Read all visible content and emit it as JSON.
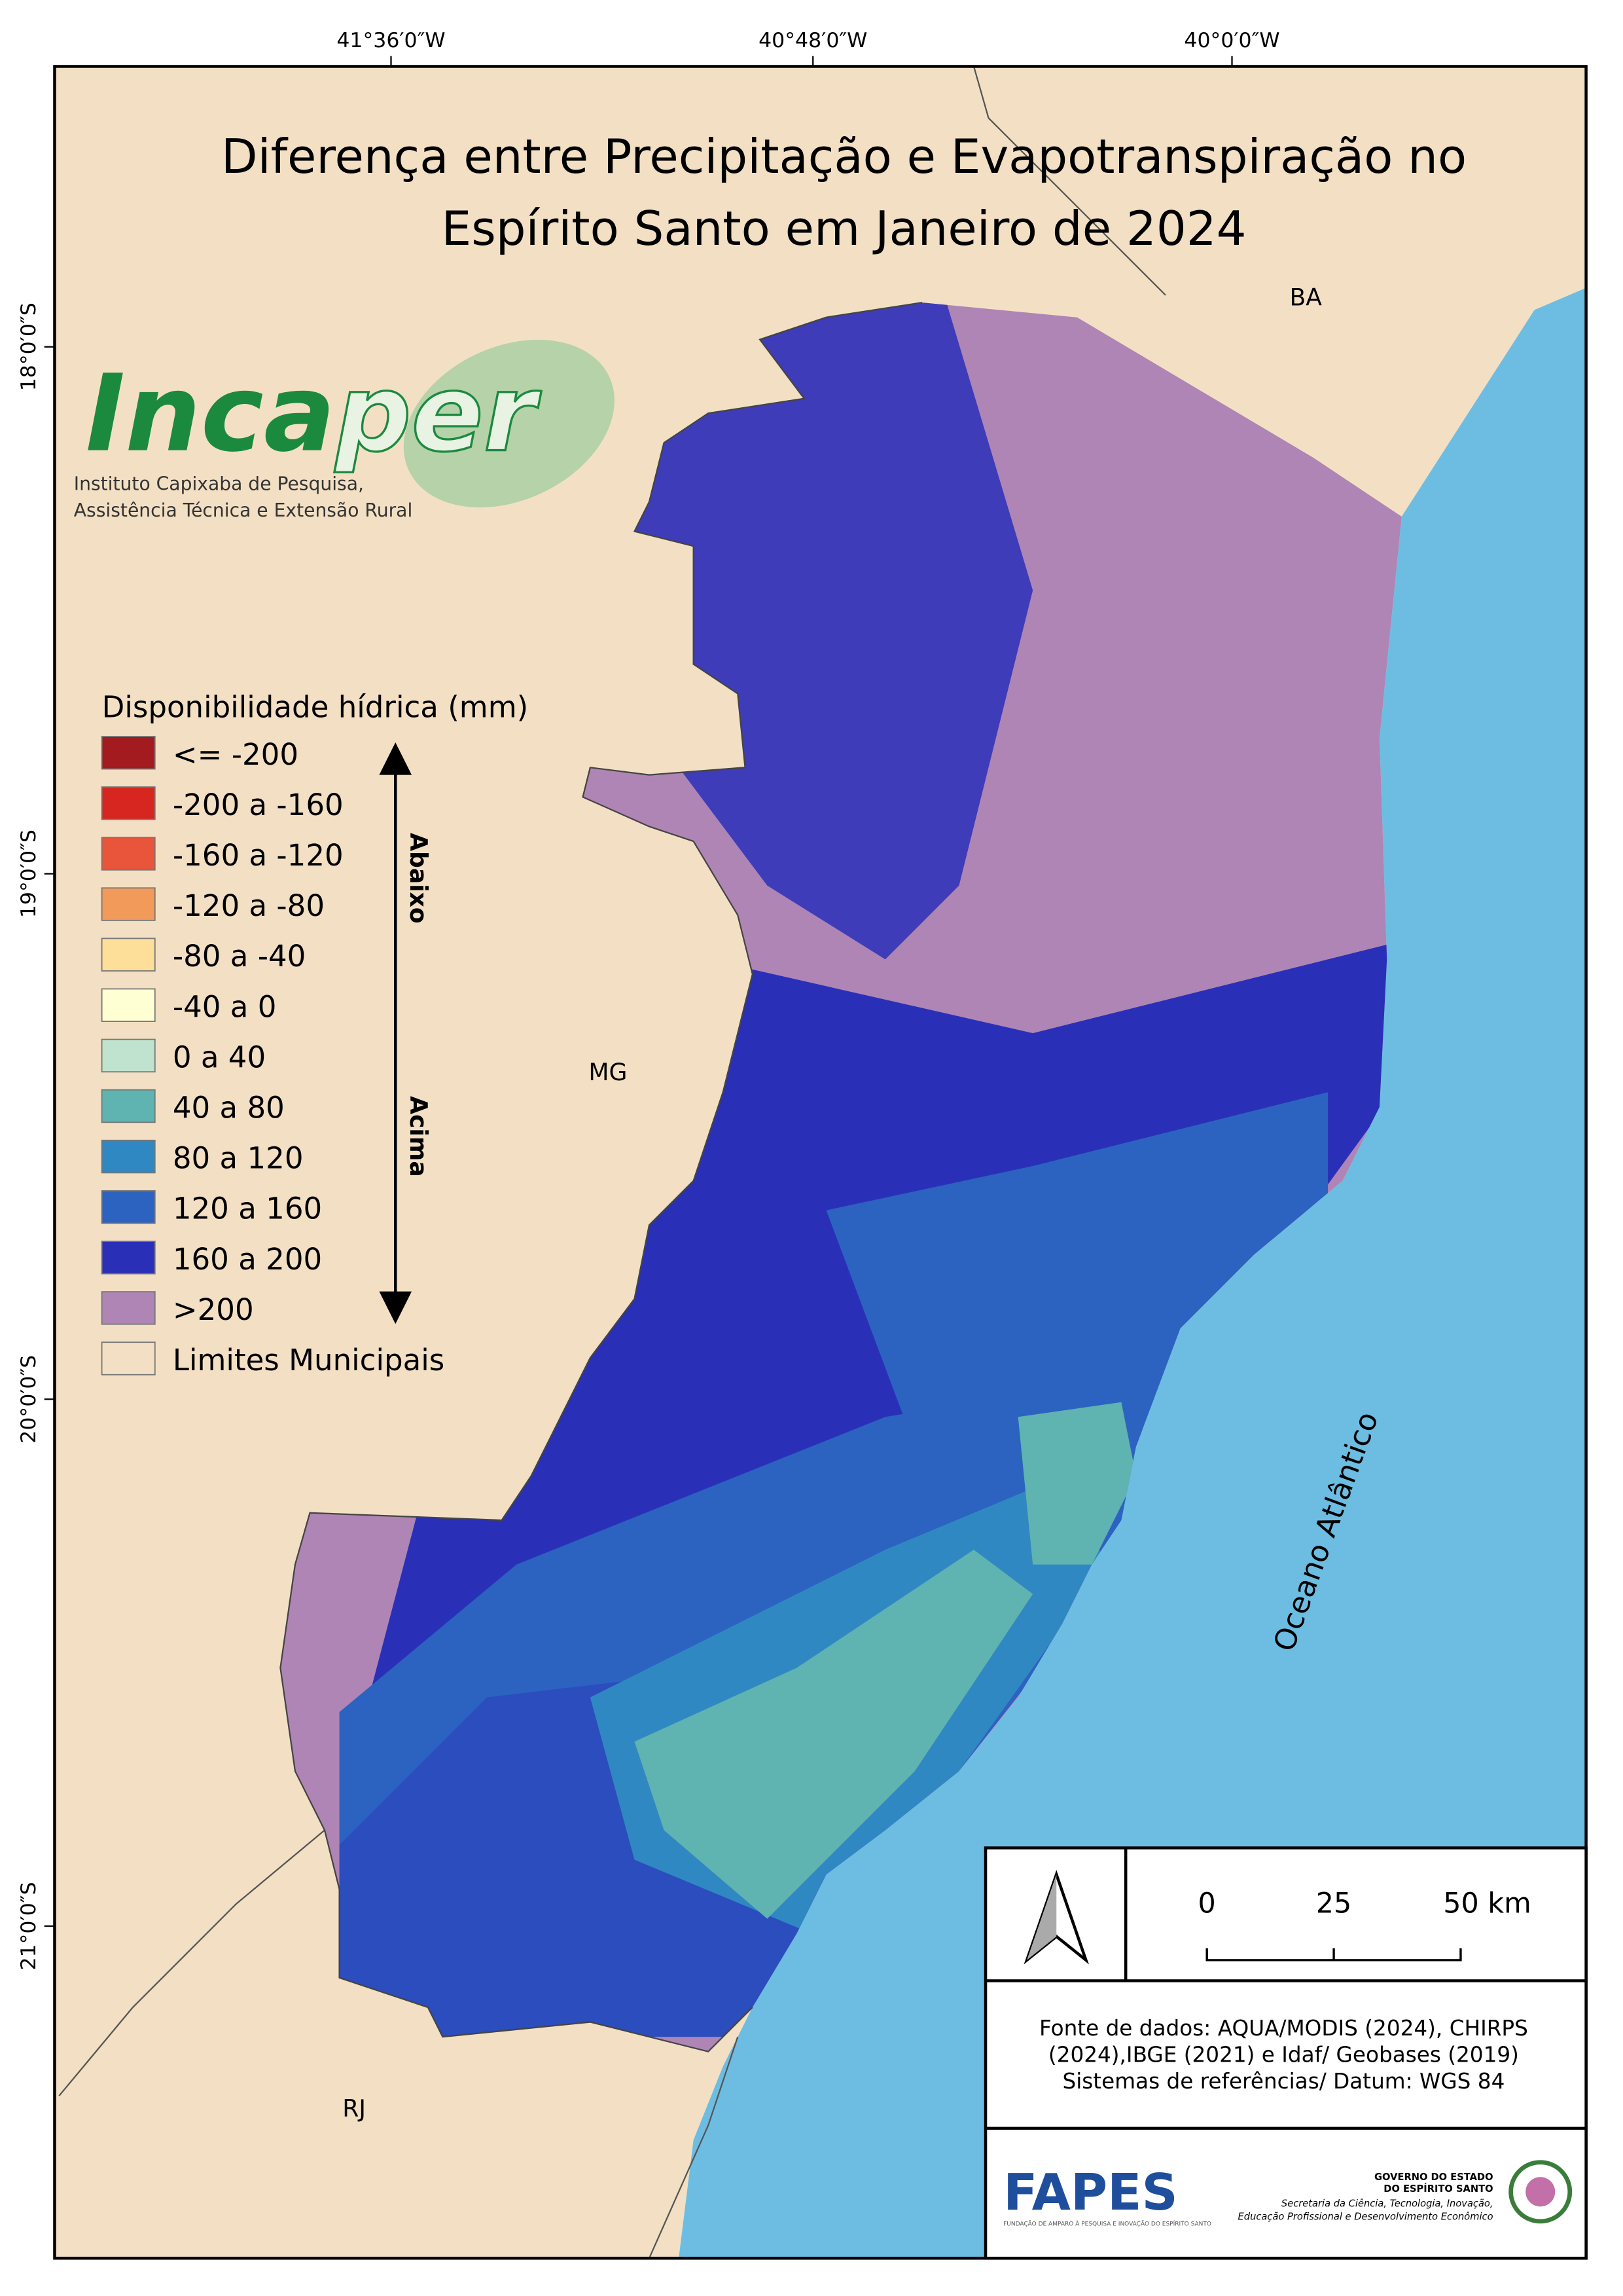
{
  "title": [
    "Diferença entre Precipitação e Evapotranspiração no",
    "Espírito Santo em Janeiro de 2024"
  ],
  "longitude_labels": [
    "41°36′0″W",
    "40°48′0″W",
    "40°0′0″W"
  ],
  "latitude_labels": [
    "18°0′0″S",
    "19°0′0″S",
    "20°0′0″S",
    "21°0′0″S"
  ],
  "region_labels": {
    "ba": "BA",
    "mg": "MG",
    "rj": "RJ",
    "ocean": "Oceano Atlântico"
  },
  "logo": {
    "name_dark": "Inca",
    "name_light": "per",
    "subtitle": [
      "Instituto Capixaba de Pesquisa,",
      "Assistência Técnica e Extensão Rural"
    ]
  },
  "legend": {
    "title": "Disponibilidade hídrica (mm)",
    "below": "Abaixo",
    "above": "Acima",
    "items": [
      {
        "label": "<= -200",
        "color": "#a31a1f"
      },
      {
        "label": "-200 a -160",
        "color": "#d7261f"
      },
      {
        "label": "-160 a -120",
        "color": "#e8553a"
      },
      {
        "label": "-120 a -80",
        "color": "#f29a5a"
      },
      {
        "label": "-80 a -40",
        "color": "#fddf9a"
      },
      {
        "label": "-40 a 0",
        "color": "#ffffd4"
      },
      {
        "label": "0 a 40",
        "color": "#bfe3cf"
      },
      {
        "label": "40 a 80",
        "color": "#5fb3b1"
      },
      {
        "label": "80 a 120",
        "color": "#3088c2"
      },
      {
        "label": "120 a 160",
        "color": "#2c62c0"
      },
      {
        "label": "160 a 200",
        "color": "#2a2fb8"
      },
      {
        "label": ">200",
        "color": "#ae85b5"
      },
      {
        "label": "Limites Municipais",
        "color": "#f3e0c4"
      }
    ]
  },
  "scale_bar": [
    "0",
    "25",
    "50 km"
  ],
  "source": [
    "Fonte de dados: AQUA/MODIS (2024), CHIRPS",
    "(2024),IBGE (2021) e Idaf/ Geobases (2019)",
    "Sistemas de referências/ Datum: WGS 84"
  ],
  "footer": {
    "fapes": "FAPES",
    "fapes_sub": "FUNDAÇÃO DE AMPARO À PESQUISA E INOVAÇÃO DO ESPÍRITO SANTO",
    "gov": [
      "GOVERNO DO ESTADO",
      "DO ESPÍRITO SANTO",
      "Secretaria da Ciência, Tecnologia, Inovação,",
      "Educação Profissional e Desenvolvimento Econômico"
    ]
  }
}
